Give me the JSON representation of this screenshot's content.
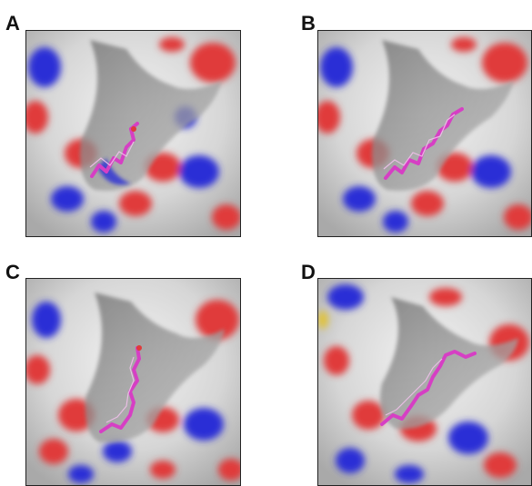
{
  "panels": [
    {
      "id": "A",
      "label": "A",
      "ligand_color": "#d63fc4"
    },
    {
      "id": "B",
      "label": "B",
      "ligand_color": "#d63fc4"
    },
    {
      "id": "C",
      "label": "C",
      "ligand_color": "#d63fc4"
    },
    {
      "id": "D",
      "label": "D",
      "ligand_color": "#d63fc4"
    }
  ],
  "colors": {
    "surface": "#d9d9d9",
    "surface_shadow": "#8f8f8f",
    "oxygen": "#e03a3a",
    "nitrogen": "#2b2fd6",
    "sulfur": "#e0c23a",
    "ligand": "#d63fc4"
  }
}
